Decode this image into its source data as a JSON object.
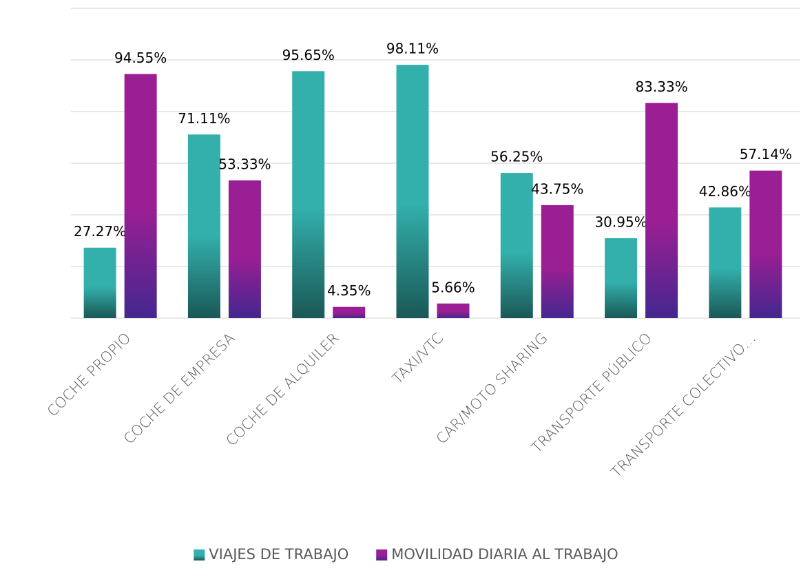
{
  "chart_data": {
    "type": "bar",
    "categories": [
      "COCHE PROPIO",
      "COCHE DE EMPRESA",
      "COCHE DE ALQUILER",
      "TAXI/VTC",
      "CAR/MOTO SHARING",
      "TRANSPORTE PÚBLICO",
      "TRANSPORTE COLECTIVO…"
    ],
    "series": [
      {
        "name": "VIAJES DE TRABAJO",
        "color": "#33b0ac",
        "values": [
          27.27,
          71.11,
          95.65,
          98.11,
          56.25,
          30.95,
          42.86
        ],
        "value_labels": [
          "27.27%",
          "71.11%",
          "95.65%",
          "98.11%",
          "56.25%",
          "30.95%",
          "42.86%"
        ]
      },
      {
        "name": "MOVILIDAD DIARIA AL TRABAJO",
        "color": "#9b1f94",
        "values": [
          94.55,
          53.33,
          4.35,
          5.66,
          43.75,
          83.33,
          57.14
        ],
        "value_labels": [
          "94.55%",
          "53.33%",
          "4.35%",
          "5.66%",
          "43.75%",
          "83.33%",
          "57.14%"
        ]
      }
    ],
    "ylim": [
      0,
      120
    ],
    "yticks": [
      0,
      20,
      40,
      60,
      80,
      100,
      120
    ],
    "grid": true,
    "legend": "bottom"
  }
}
